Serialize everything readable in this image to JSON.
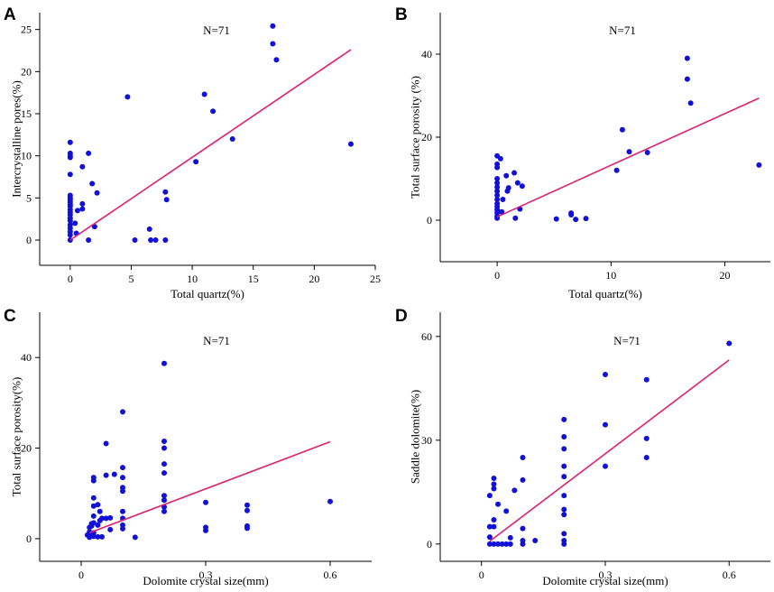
{
  "figure": {
    "panels": [
      "A",
      "B",
      "C",
      "D"
    ]
  },
  "colors": {
    "points": "#1010d8",
    "fit_line": "#e0206e",
    "axis": "#000000"
  },
  "chart_data": [
    {
      "panel": "A",
      "type": "scatter",
      "annotation": "N=71",
      "xlabel": "Total quartz(%)",
      "ylabel": "Intercrystalline pores(%)",
      "xlim": [
        -2.5,
        25
      ],
      "ylim": [
        -3,
        27
      ],
      "xticks": [
        0,
        5,
        10,
        15,
        20,
        25
      ],
      "yticks": [
        0,
        5,
        10,
        15,
        20,
        25
      ],
      "points": [
        [
          0,
          11.6
        ],
        [
          0,
          10.3
        ],
        [
          0,
          10
        ],
        [
          0,
          9.8
        ],
        [
          0,
          7.8
        ],
        [
          0,
          5.3
        ],
        [
          0,
          5
        ],
        [
          0,
          4.8
        ],
        [
          0,
          4.5
        ],
        [
          0,
          4.2
        ],
        [
          0,
          4
        ],
        [
          0,
          3.6
        ],
        [
          0,
          3.3
        ],
        [
          0,
          3
        ],
        [
          0,
          2.6
        ],
        [
          0,
          2.3
        ],
        [
          0,
          1.8
        ],
        [
          0,
          1.4
        ],
        [
          0,
          1
        ],
        [
          0,
          0.6
        ],
        [
          0,
          0
        ],
        [
          0.4,
          2
        ],
        [
          0.5,
          0.8
        ],
        [
          0.6,
          3.5
        ],
        [
          1,
          8.7
        ],
        [
          1,
          4.3
        ],
        [
          1,
          3.7
        ],
        [
          1.5,
          10.3
        ],
        [
          1.5,
          0
        ],
        [
          1.8,
          6.7
        ],
        [
          2,
          1.6
        ],
        [
          2.2,
          5.6
        ],
        [
          4.7,
          17
        ],
        [
          5.3,
          0
        ],
        [
          6.5,
          1.3
        ],
        [
          6.6,
          0
        ],
        [
          7,
          0
        ],
        [
          7.8,
          5.7
        ],
        [
          7.9,
          4.8
        ],
        [
          7.8,
          0
        ],
        [
          10.3,
          9.3
        ],
        [
          11,
          17.3
        ],
        [
          11.7,
          15.3
        ],
        [
          13.3,
          12
        ],
        [
          16.6,
          25.4
        ],
        [
          16.6,
          23.3
        ],
        [
          16.9,
          21.4
        ],
        [
          23,
          11.4
        ]
      ],
      "fit": [
        [
          0,
          0
        ],
        [
          23,
          22.6
        ]
      ]
    },
    {
      "panel": "B",
      "type": "scatter",
      "annotation": "N=71",
      "xlabel": "Total quartz(%)",
      "ylabel": "Total surface porosity (%)",
      "xlim": [
        -5,
        24
      ],
      "ylim": [
        -10,
        50
      ],
      "xticks": [
        0,
        10,
        20
      ],
      "yticks": [
        0,
        20,
        40
      ],
      "points": [
        [
          0,
          15.5
        ],
        [
          0,
          13.5
        ],
        [
          0,
          12.7
        ],
        [
          0,
          10
        ],
        [
          0,
          9
        ],
        [
          0,
          8
        ],
        [
          0,
          7
        ],
        [
          0,
          6
        ],
        [
          0,
          5
        ],
        [
          0,
          4
        ],
        [
          0,
          3.2
        ],
        [
          0,
          2.5
        ],
        [
          0,
          1.8
        ],
        [
          0,
          1
        ],
        [
          0,
          0.5
        ],
        [
          0.3,
          14.8
        ],
        [
          0.4,
          2
        ],
        [
          0.5,
          5
        ],
        [
          0.8,
          10.7
        ],
        [
          0.9,
          7
        ],
        [
          1,
          7.8
        ],
        [
          1.5,
          11.4
        ],
        [
          1.6,
          0.5
        ],
        [
          1.8,
          9
        ],
        [
          2,
          2.7
        ],
        [
          2.2,
          8.2
        ],
        [
          5.2,
          0.3
        ],
        [
          6.5,
          1.7
        ],
        [
          6.5,
          1.3
        ],
        [
          6.9,
          0.2
        ],
        [
          7.8,
          0.4
        ],
        [
          10.5,
          12
        ],
        [
          11,
          21.8
        ],
        [
          11.6,
          16.5
        ],
        [
          13.2,
          16.3
        ],
        [
          16.7,
          39
        ],
        [
          16.7,
          34
        ],
        [
          17,
          28.2
        ],
        [
          23,
          13.3
        ]
      ],
      "fit": [
        [
          0,
          0.8
        ],
        [
          23,
          29.4
        ]
      ]
    },
    {
      "panel": "C",
      "type": "scatter",
      "annotation": "N=71",
      "xlabel": "Dolomite crystal size(mm)",
      "ylabel": "Total surface porosity(%)",
      "xlim": [
        -0.1,
        0.7
      ],
      "ylim": [
        -5,
        50
      ],
      "xticks": [
        0,
        0.3,
        0.6
      ],
      "yticks": [
        0,
        20,
        40
      ],
      "points": [
        [
          0.015,
          0.8
        ],
        [
          0.02,
          0.3
        ],
        [
          0.02,
          1
        ],
        [
          0.02,
          1.5
        ],
        [
          0.02,
          2.5
        ],
        [
          0.025,
          2.8
        ],
        [
          0.025,
          3.3
        ],
        [
          0.03,
          0.5
        ],
        [
          0.03,
          1.3
        ],
        [
          0.03,
          13.5
        ],
        [
          0.03,
          12.8
        ],
        [
          0.03,
          9
        ],
        [
          0.03,
          7.2
        ],
        [
          0.03,
          5
        ],
        [
          0.03,
          3.5
        ],
        [
          0.04,
          3
        ],
        [
          0.04,
          7.5
        ],
        [
          0.04,
          0.4
        ],
        [
          0.045,
          4
        ],
        [
          0.045,
          6
        ],
        [
          0.05,
          0.4
        ],
        [
          0.05,
          4.5
        ],
        [
          0.06,
          21
        ],
        [
          0.06,
          14
        ],
        [
          0.06,
          4.5
        ],
        [
          0.07,
          4.6
        ],
        [
          0.07,
          2
        ],
        [
          0.08,
          14.2
        ],
        [
          0.1,
          28
        ],
        [
          0.1,
          15.7
        ],
        [
          0.1,
          13.5
        ],
        [
          0.1,
          11.3
        ],
        [
          0.1,
          10.5
        ],
        [
          0.1,
          6
        ],
        [
          0.1,
          4.5
        ],
        [
          0.1,
          3
        ],
        [
          0.1,
          2.2
        ],
        [
          0.13,
          0.3
        ],
        [
          0.2,
          38.7
        ],
        [
          0.2,
          21.5
        ],
        [
          0.2,
          20
        ],
        [
          0.2,
          16.5
        ],
        [
          0.2,
          14.5
        ],
        [
          0.2,
          9.5
        ],
        [
          0.2,
          8.5
        ],
        [
          0.2,
          7
        ],
        [
          0.2,
          6
        ],
        [
          0.3,
          8
        ],
        [
          0.3,
          2.5
        ],
        [
          0.3,
          1.8
        ],
        [
          0.4,
          7.4
        ],
        [
          0.4,
          6.2
        ],
        [
          0.4,
          2.8
        ],
        [
          0.4,
          2.3
        ],
        [
          0.6,
          8.2
        ]
      ],
      "fit": [
        [
          0.02,
          1.3
        ],
        [
          0.6,
          21.4
        ]
      ]
    },
    {
      "panel": "D",
      "type": "scatter",
      "annotation": "N=71",
      "xlabel": "Dolomite crystal size(mm)",
      "ylabel": "Saddle dolomite(%)",
      "xlim": [
        -0.1,
        0.7
      ],
      "ylim": [
        -5,
        67
      ],
      "xticks": [
        0,
        0.3,
        0.6
      ],
      "yticks": [
        0,
        30,
        60
      ],
      "points": [
        [
          0.02,
          0
        ],
        [
          0.02,
          2
        ],
        [
          0.02,
          5
        ],
        [
          0.02,
          14
        ],
        [
          0.03,
          0
        ],
        [
          0.03,
          5
        ],
        [
          0.03,
          7
        ],
        [
          0.03,
          16
        ],
        [
          0.03,
          17.3
        ],
        [
          0.03,
          19
        ],
        [
          0.04,
          0
        ],
        [
          0.04,
          11.5
        ],
        [
          0.05,
          0
        ],
        [
          0.06,
          0
        ],
        [
          0.06,
          9.5
        ],
        [
          0.07,
          0
        ],
        [
          0.07,
          1.8
        ],
        [
          0.08,
          15.5
        ],
        [
          0.1,
          25
        ],
        [
          0.1,
          18.5
        ],
        [
          0.1,
          4.5
        ],
        [
          0.1,
          1
        ],
        [
          0.1,
          0
        ],
        [
          0.13,
          1
        ],
        [
          0.2,
          36
        ],
        [
          0.2,
          31
        ],
        [
          0.2,
          27.5
        ],
        [
          0.2,
          22.5
        ],
        [
          0.2,
          19.5
        ],
        [
          0.2,
          14
        ],
        [
          0.2,
          10
        ],
        [
          0.2,
          8.5
        ],
        [
          0.2,
          3
        ],
        [
          0.2,
          1
        ],
        [
          0.2,
          0
        ],
        [
          0.3,
          49
        ],
        [
          0.3,
          34.5
        ],
        [
          0.3,
          22.5
        ],
        [
          0.4,
          47.5
        ],
        [
          0.4,
          30.5
        ],
        [
          0.4,
          25
        ],
        [
          0.6,
          58
        ]
      ],
      "fit": [
        [
          0.02,
          0.8
        ],
        [
          0.6,
          53.2
        ]
      ]
    }
  ]
}
